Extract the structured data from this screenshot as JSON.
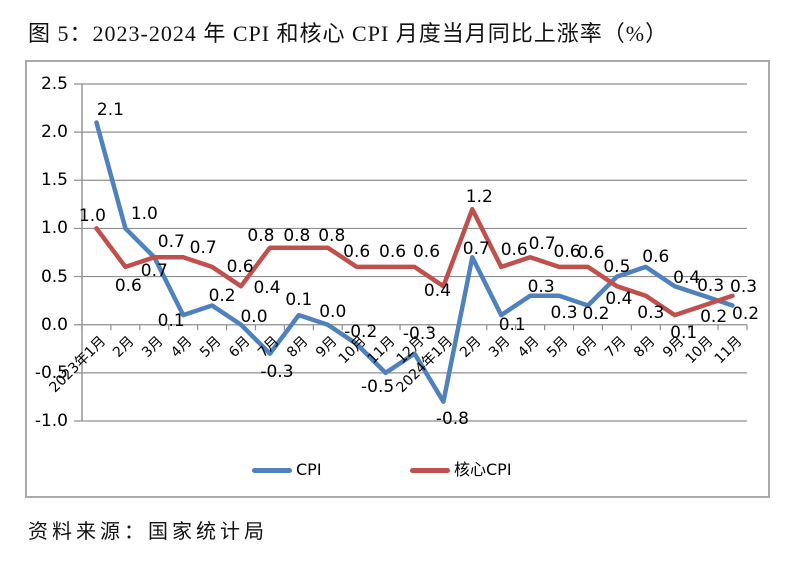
{
  "title": "图 5：2023-2024 年 CPI 和核心 CPI 月度当月同比上涨率（%）",
  "source": "资料来源：国家统计局",
  "colors": {
    "cpi_line": "#4F81BD",
    "core_line": "#C0504D",
    "grid": "#8f8f8f",
    "frame": "#a9a9a9",
    "text": "#000000"
  },
  "chart_data": {
    "type": "line",
    "title": "图 5：2023-2024 年 CPI 和核心 CPI 月度当月同比上涨率（%）",
    "categories": [
      "2023年1月",
      "2月",
      "3月",
      "4月",
      "5月",
      "6月",
      "7月",
      "8月",
      "9月",
      "10月",
      "11月",
      "12月",
      "2024年1月",
      "2月",
      "3月",
      "4月",
      "5月",
      "6月",
      "7月",
      "8月",
      "9月",
      "10月",
      "11月"
    ],
    "series": [
      {
        "name": "CPI",
        "color": "#4F81BD",
        "values": [
          2.1,
          1.0,
          0.7,
          0.1,
          0.2,
          0.0,
          -0.3,
          0.1,
          0.0,
          -0.2,
          -0.5,
          -0.3,
          -0.8,
          0.7,
          0.1,
          0.3,
          0.3,
          0.2,
          0.5,
          0.6,
          0.4,
          0.3,
          0.2
        ],
        "label_offsets": [
          [
            14,
            -13
          ],
          [
            19,
            -14
          ],
          [
            17,
            -15
          ],
          [
            -12,
            6
          ],
          [
            10,
            -9
          ],
          [
            13,
            -8
          ],
          [
            7,
            18
          ],
          [
            0,
            -15
          ],
          [
            5,
            -13
          ],
          [
            4,
            -12
          ],
          [
            -8,
            14
          ],
          [
            5,
            -20
          ],
          [
            9,
            17
          ],
          [
            4,
            -8
          ],
          [
            11,
            10
          ],
          [
            11,
            -9
          ],
          [
            5,
            17
          ],
          [
            8,
            9
          ],
          [
            0,
            -10
          ],
          [
            10,
            -10
          ],
          [
            12,
            -8
          ],
          [
            7,
            -10
          ],
          [
            13,
            9
          ]
        ]
      },
      {
        "name": "核心CPI",
        "color": "#C0504D",
        "values": [
          1.0,
          0.6,
          0.7,
          0.7,
          0.6,
          0.4,
          0.8,
          0.8,
          0.8,
          0.6,
          0.6,
          0.6,
          0.4,
          1.2,
          0.6,
          0.7,
          0.6,
          0.6,
          0.4,
          0.3,
          0.1,
          0.2,
          0.3
        ],
        "label_offsets": [
          [
            -4,
            -12
          ],
          [
            3,
            19
          ],
          [
            0,
            14
          ],
          [
            20,
            -9
          ],
          [
            28,
            0
          ],
          [
            26,
            2
          ],
          [
            -9,
            -12
          ],
          [
            -2,
            -12
          ],
          [
            4,
            -12
          ],
          [
            0,
            -15
          ],
          [
            7,
            -15
          ],
          [
            12,
            -15
          ],
          [
            -6,
            5
          ],
          [
            7,
            -12
          ],
          [
            13,
            -17
          ],
          [
            12,
            -13
          ],
          [
            8,
            -15
          ],
          [
            3,
            -14
          ],
          [
            2,
            13
          ],
          [
            5,
            17
          ],
          [
            9,
            18
          ],
          [
            10,
            12
          ],
          [
            11,
            -9
          ]
        ]
      }
    ],
    "yticks": [
      2.5,
      2.0,
      1.5,
      1.0,
      0.5,
      0.0,
      -0.5,
      -1.0
    ],
    "ylim": [
      -1.0,
      2.5
    ],
    "xlabel": "",
    "ylabel": "",
    "grid": true,
    "data_labels": true,
    "legend_position": "bottom"
  }
}
